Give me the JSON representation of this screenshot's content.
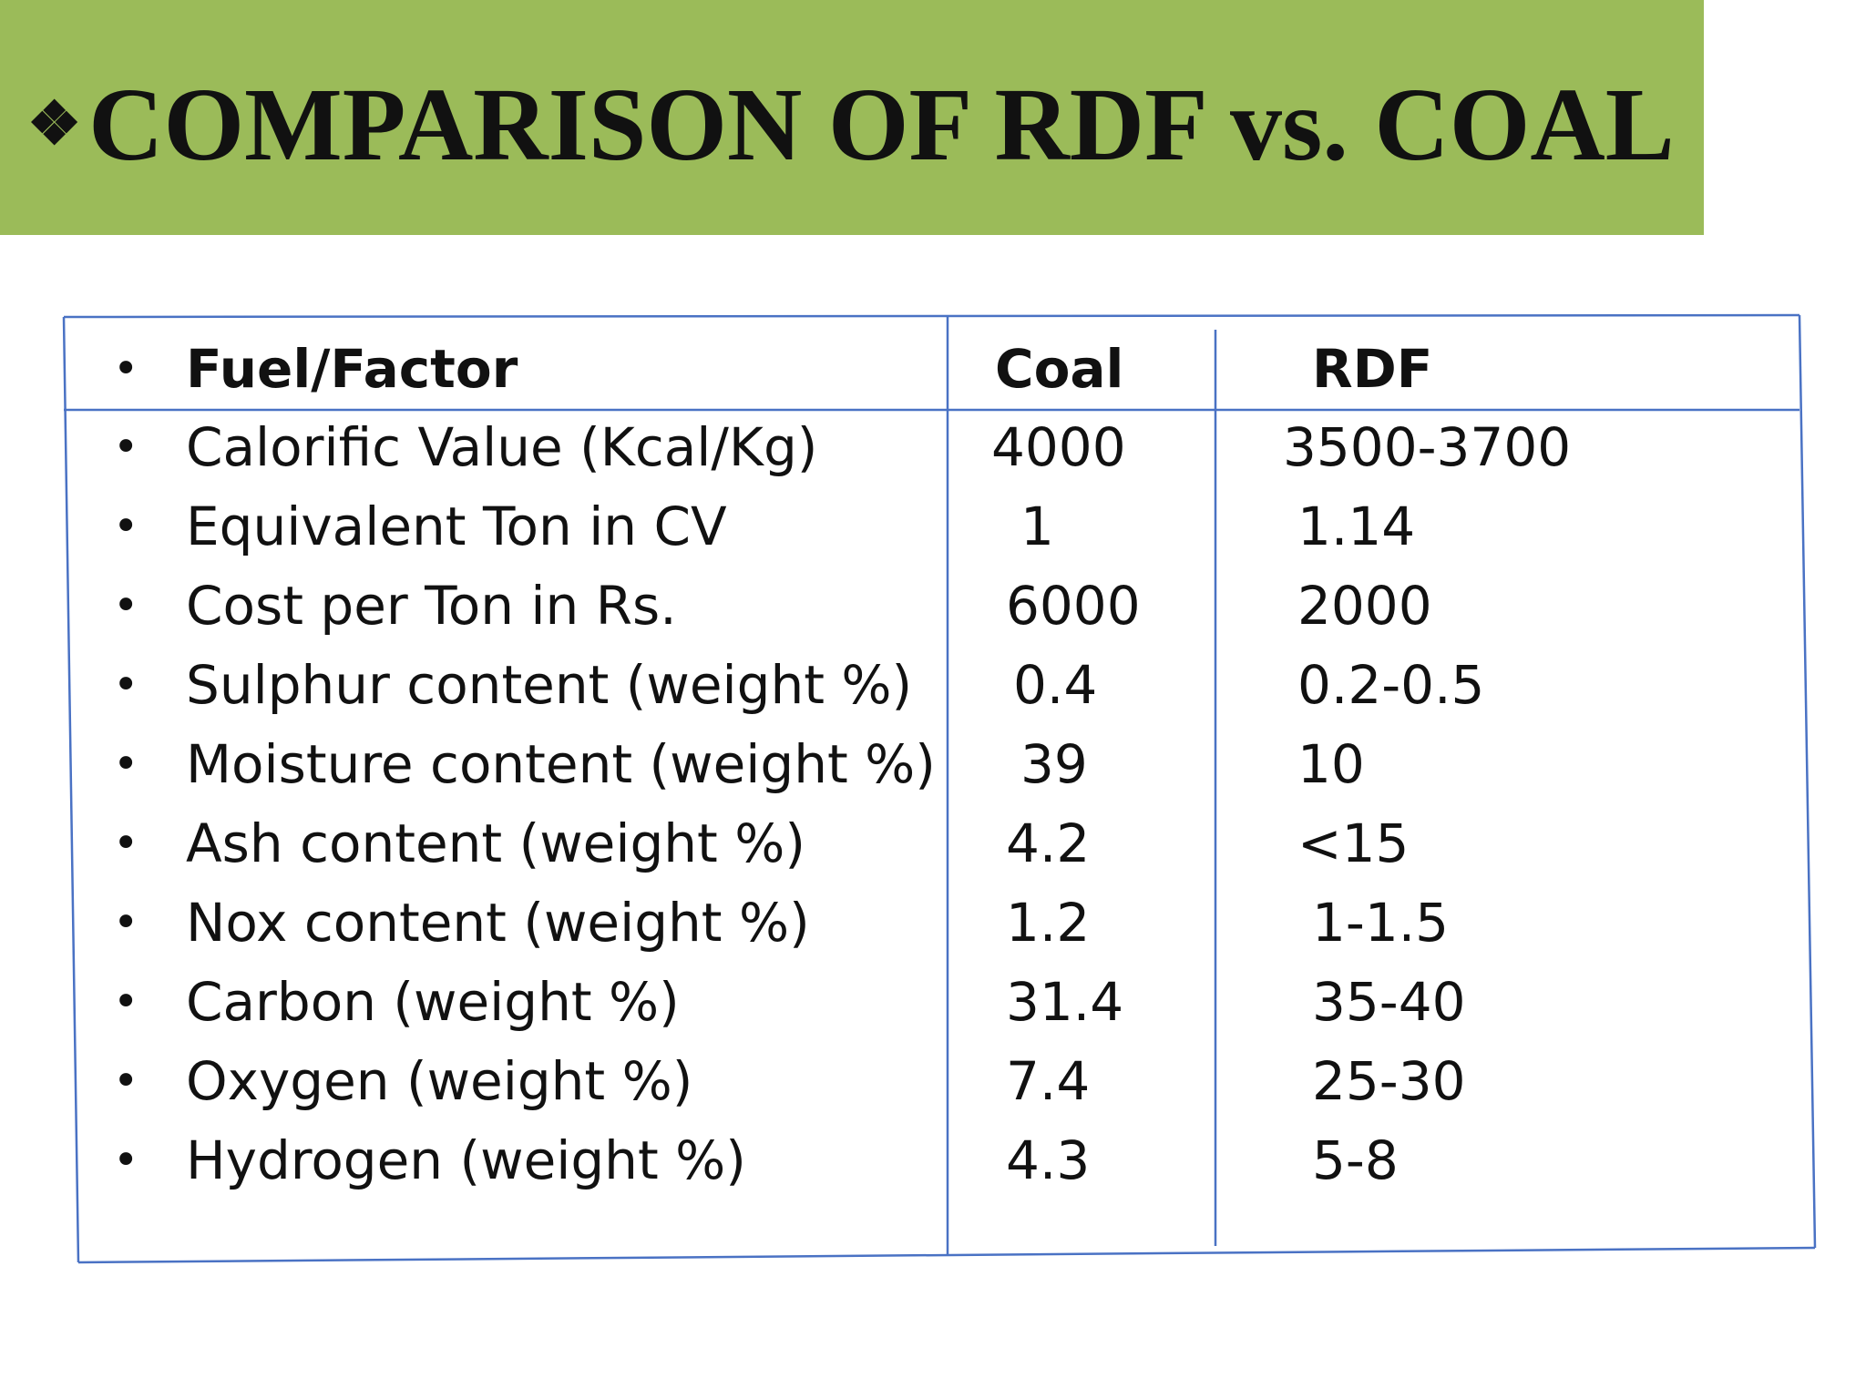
{
  "slide": {
    "title_marker": "❖",
    "title": "COMPARISON OF RDF vs. COAL"
  },
  "table": {
    "bullet": "•",
    "header": {
      "factor": "Fuel/Factor",
      "coal": "Coal",
      "rdf": "RDF"
    },
    "rows": [
      {
        "factor": "Calorific Value (Kcal/Kg)",
        "coal": "4000",
        "rdf": "3500-3700"
      },
      {
        "factor": "Equivalent Ton in CV",
        "coal": "1",
        "rdf": "1.14"
      },
      {
        "factor": "Cost per Ton in Rs.",
        "coal": "6000",
        "rdf": "2000"
      },
      {
        "factor": "Sulphur content (weight %)",
        "coal": "0.4",
        "rdf": "0.2-0.5"
      },
      {
        "factor": "Moisture content (weight %)",
        "coal": "39",
        "rdf": "10"
      },
      {
        "factor": "Ash content (weight %)",
        "coal": "4.2",
        "rdf": "<15"
      },
      {
        "factor": "Nox content (weight %)",
        "coal": "1.2",
        "rdf": "1-1.5"
      },
      {
        "factor": "Carbon (weight %)",
        "coal": "31.4",
        "rdf": "35-40"
      },
      {
        "factor": "Oxygen (weight %)",
        "coal": "7.4",
        "rdf": "25-30"
      },
      {
        "factor": "Hydrogen (weight %)",
        "coal": "4.3",
        "rdf": "5-8"
      }
    ]
  },
  "colors": {
    "title_band": "#9bbb59",
    "table_border": "#4a72c4",
    "text": "#111111"
  }
}
